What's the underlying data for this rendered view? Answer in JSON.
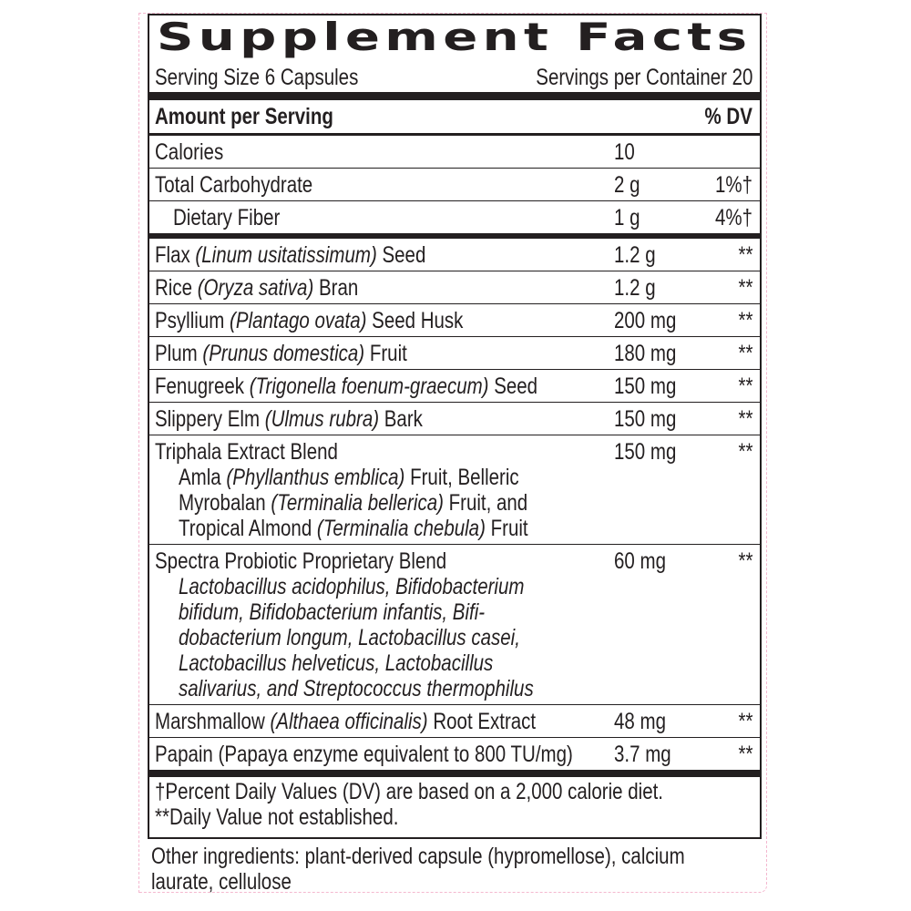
{
  "title": "Supplement Facts",
  "serving_size": "Serving Size 6 Capsules",
  "servings_per_container": "Servings per Container 20",
  "header": {
    "amount": "Amount per Serving",
    "dv": "% DV"
  },
  "rows": [
    {
      "label": [
        {
          "t": "Calories"
        }
      ],
      "amount": "10",
      "dv": ""
    },
    {
      "label": [
        {
          "t": "Total Carbohydrate"
        }
      ],
      "amount": "2 g",
      "dv": "1%†"
    },
    {
      "label": [
        {
          "t": "Dietary Fiber"
        }
      ],
      "indent": true,
      "amount": "1 g",
      "dv": "4%†",
      "thick_after": true
    },
    {
      "label": [
        {
          "t": "Flax "
        },
        {
          "t": "(Linum usitatissimum)",
          "i": true
        },
        {
          "t": " Seed"
        }
      ],
      "amount": "1.2 g",
      "dv": "**"
    },
    {
      "label": [
        {
          "t": "Rice "
        },
        {
          "t": "(Oryza sativa)",
          "i": true
        },
        {
          "t": " Bran"
        }
      ],
      "amount": "1.2 g",
      "dv": "**"
    },
    {
      "label": [
        {
          "t": "Psyllium "
        },
        {
          "t": "(Plantago ovata)",
          "i": true
        },
        {
          "t": " Seed Husk"
        }
      ],
      "amount": "200 mg",
      "dv": "**"
    },
    {
      "label": [
        {
          "t": "Plum "
        },
        {
          "t": "(Prunus domestica)",
          "i": true
        },
        {
          "t": " Fruit"
        }
      ],
      "amount": "180 mg",
      "dv": "**"
    },
    {
      "label": [
        {
          "t": "Fenugreek "
        },
        {
          "t": "(Trigonella foenum-graecum)",
          "i": true
        },
        {
          "t": " Seed"
        }
      ],
      "amount": "150 mg",
      "dv": "**"
    },
    {
      "label": [
        {
          "t": "Slippery Elm "
        },
        {
          "t": "(Ulmus rubra)",
          "i": true
        },
        {
          "t": " Bark"
        }
      ],
      "amount": "150 mg",
      "dv": "**"
    },
    {
      "label": [
        {
          "t": "Triphala Extract Blend"
        }
      ],
      "amount": "150 mg",
      "dv": "**",
      "sub": [
        [
          {
            "t": "Amla "
          },
          {
            "t": "(Phyllanthus emblica)",
            "i": true
          },
          {
            "t": " Fruit, Belleric"
          }
        ],
        [
          {
            "t": "Myrobalan "
          },
          {
            "t": "(Terminalia bellerica)",
            "i": true
          },
          {
            "t": " Fruit, and"
          }
        ],
        [
          {
            "t": "Tropical Almond "
          },
          {
            "t": "(Terminalia chebula)",
            "i": true
          },
          {
            "t": " Fruit"
          }
        ]
      ]
    },
    {
      "label": [
        {
          "t": "Spectra Probiotic Proprietary Blend"
        }
      ],
      "amount": "60 mg",
      "dv": "**",
      "sub": [
        [
          {
            "t": "Lactobacillus acidophilus, Bifidobacterium",
            "i": true
          }
        ],
        [
          {
            "t": "bifidum, Bifidobacterium infantis, Bifi-",
            "i": true
          }
        ],
        [
          {
            "t": "dobacterium longum, Lactobacillus casei,",
            "i": true
          }
        ],
        [
          {
            "t": "Lactobacillus helveticus, Lactobacillus",
            "i": true
          }
        ],
        [
          {
            "t": "salivarius, and Streptococcus thermophilus",
            "i": true
          }
        ]
      ]
    },
    {
      "label": [
        {
          "t": "Marshmallow "
        },
        {
          "t": "(Althaea officinalis)",
          "i": true
        },
        {
          "t": " Root Extract"
        }
      ],
      "amount": "48 mg",
      "dv": "**"
    },
    {
      "label": [
        {
          "t": "Papain (Papaya enzyme equivalent to 800 TU/mg)"
        }
      ],
      "amount": "3.7 mg",
      "dv": "**",
      "last": true
    }
  ],
  "footnotes": [
    "†Percent Daily Values (DV) are based on a 2,000 calorie diet.",
    "**Daily Value not established."
  ],
  "other_ingredients": [
    "Other ingredients: plant-derived capsule (hypromellose), calcium",
    "laurate, cellulose"
  ]
}
